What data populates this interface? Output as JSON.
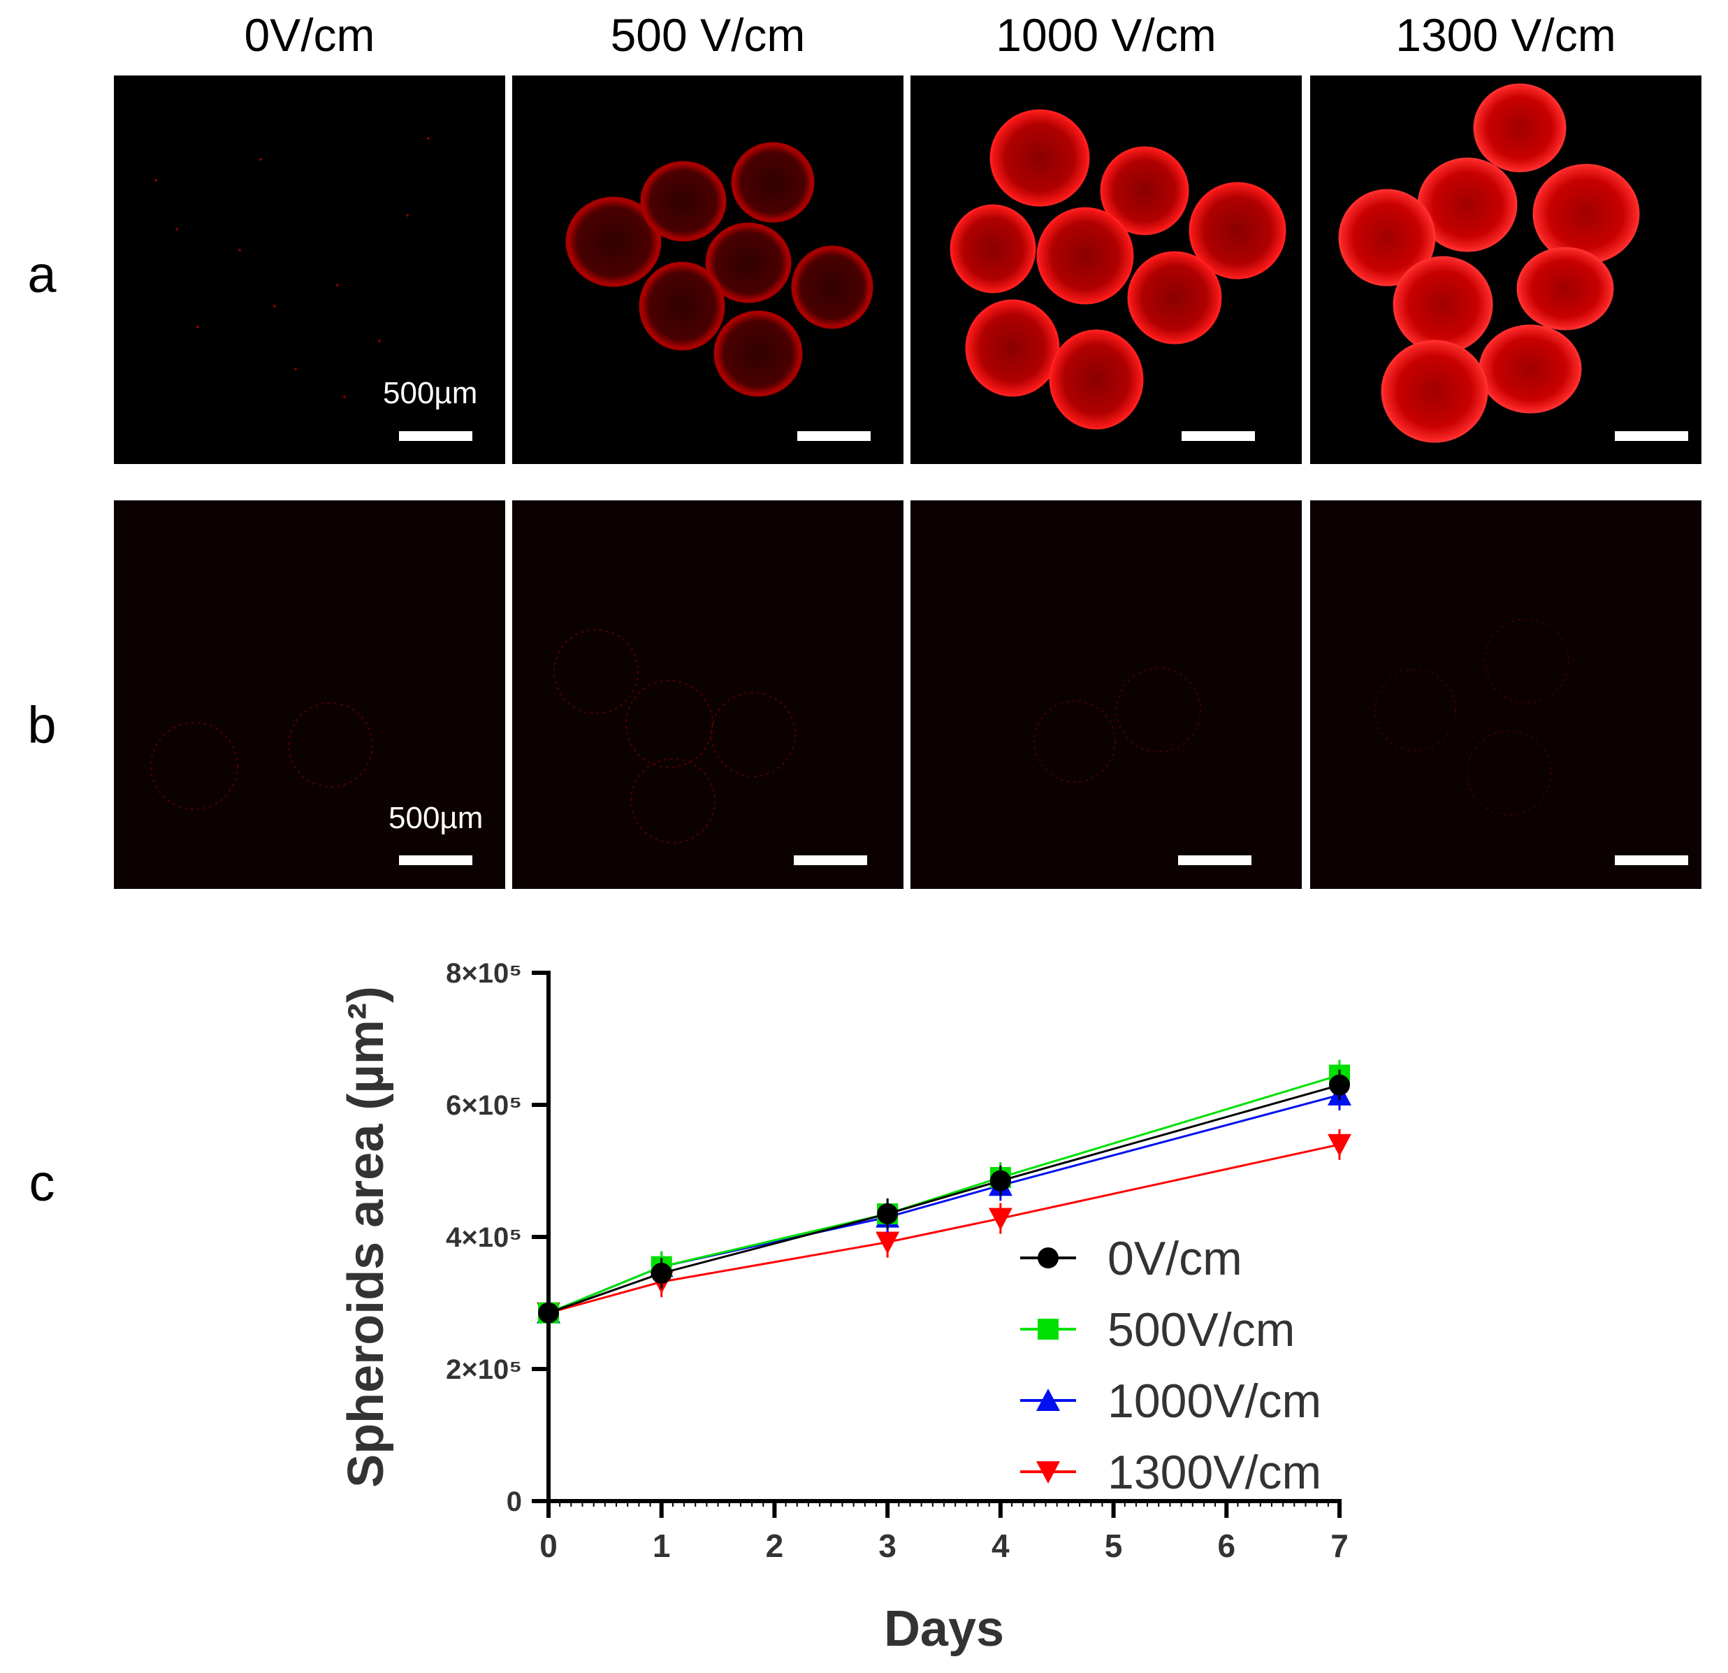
{
  "column_titles": [
    "0V/cm",
    "500 V/cm",
    "1000 V/cm",
    "1300 V/cm"
  ],
  "row_labels": {
    "a": "a",
    "b": "b",
    "c": "c"
  },
  "scale_bar_label": "500µm",
  "colors": {
    "red_stain": "#e00000",
    "black": "#000000",
    "green": "#00e000",
    "blue": "#0010f0",
    "red": "#ff0000"
  },
  "chart_data": {
    "type": "line",
    "xlabel": "Days",
    "ylabel": "Spheroids area (µm²)",
    "xlim": [
      0,
      7
    ],
    "ylim": [
      0,
      800000
    ],
    "x_ticks": [
      "0",
      "1",
      "2",
      "3",
      "4",
      "5",
      "6",
      "7"
    ],
    "y_ticks": [
      "0",
      "2×10⁵",
      "4×10⁵",
      "6×10⁵",
      "8×10⁵"
    ],
    "x": [
      0,
      1,
      3,
      4,
      7
    ],
    "legend_position": "right",
    "series": [
      {
        "name": "0V/cm",
        "marker": "circle",
        "color": "#000000",
        "values": [
          285000,
          345000,
          435000,
          485000,
          630000
        ]
      },
      {
        "name": "500V/cm",
        "marker": "square",
        "color": "#00e000",
        "values": [
          285000,
          355000,
          435000,
          490000,
          645000
        ]
      },
      {
        "name": "1000V/cm",
        "marker": "triangle-up",
        "color": "#0010f0",
        "values": [
          285000,
          355000,
          430000,
          478000,
          615000
        ]
      },
      {
        "name": "1300V/cm",
        "marker": "triangle-down",
        "color": "#ff0000",
        "values": [
          285000,
          332000,
          392000,
          428000,
          540000
        ]
      }
    ]
  }
}
